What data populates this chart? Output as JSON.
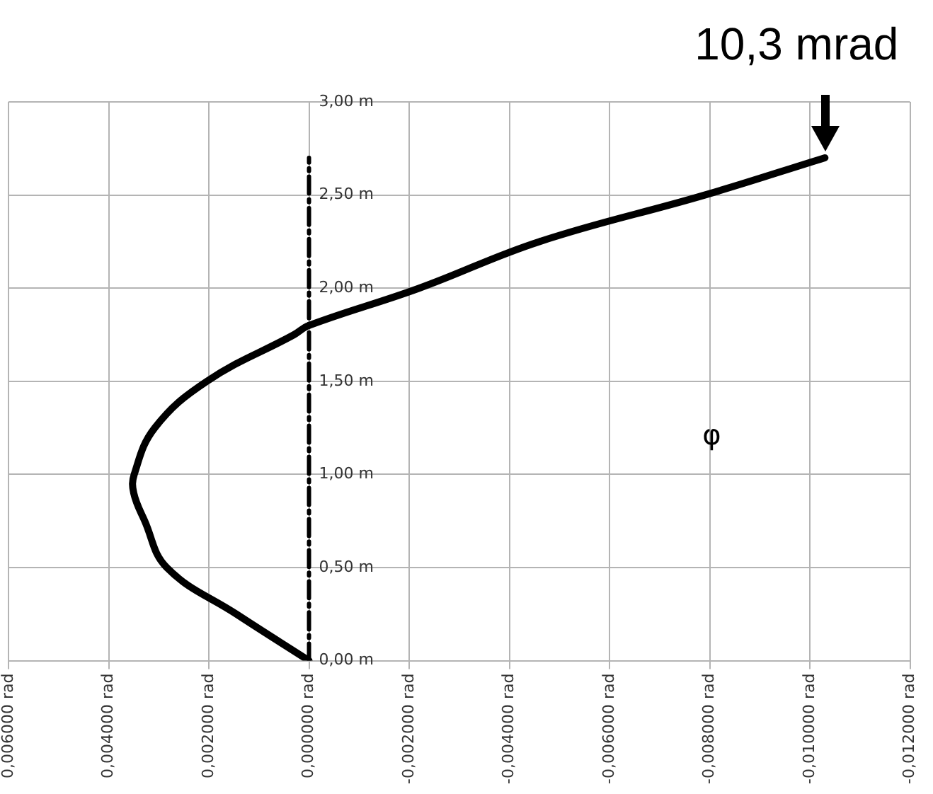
{
  "chart_data": {
    "type": "line",
    "series": [
      {
        "color": "#000000",
        "x": [
          0,
          0.00145,
          0.00284,
          0.00328,
          0.0035,
          0.00349,
          0.00308,
          0.00204,
          0.0003,
          0,
          -0.0022,
          -0.0046,
          -0.0079,
          -0.0103
        ],
        "values": [
          0,
          0.25,
          0.5,
          0.75,
          0.9,
          1.0,
          1.25,
          1.5,
          1.75,
          1.8,
          2.0,
          2.25,
          2.5,
          2.7
        ]
      },
      {
        "color": "#000000",
        "x": [
          0,
          0
        ],
        "values": [
          0,
          2.7
        ],
        "line_style": "dashed"
      }
    ],
    "xlim": [
      0.006,
      -0.012
    ],
    "xticks": [
      {
        "value": 0.006,
        "label": "0,006000 rad"
      },
      {
        "value": 0.004,
        "label": "0,004000 rad"
      },
      {
        "value": 0.002,
        "label": "0,002000 rad"
      },
      {
        "value": 0,
        "label": "0,000000 rad"
      },
      {
        "value": -0.002,
        "label": "-0,002000 rad"
      },
      {
        "value": -0.004,
        "label": "-0,004000 rad"
      },
      {
        "value": -0.006,
        "label": "-0,006000 rad"
      },
      {
        "value": -0.008,
        "label": "-0,008000 rad"
      },
      {
        "value": -0.01,
        "label": "-0,010000 rad"
      },
      {
        "value": -0.012,
        "label": "-0,012000 rad"
      }
    ],
    "ylim": [
      0,
      3
    ],
    "yticks": [
      {
        "value": 0,
        "label": "0,00 m"
      },
      {
        "value": 0.5,
        "label": "0,50 m"
      },
      {
        "value": 1,
        "label": "1,00 m"
      },
      {
        "value": 1.5,
        "label": "1,50 m"
      },
      {
        "value": 2,
        "label": "2,00 m"
      },
      {
        "value": 2.5,
        "label": "2,50 m"
      },
      {
        "value": 3,
        "label": "3,00 m"
      }
    ],
    "grid": true,
    "legend": false,
    "marker": "none",
    "line_style": "solid",
    "annotations": [
      {
        "text": "10,3 mrad",
        "x": -0.0103,
        "y": 2.7
      },
      "φ"
    ]
  }
}
